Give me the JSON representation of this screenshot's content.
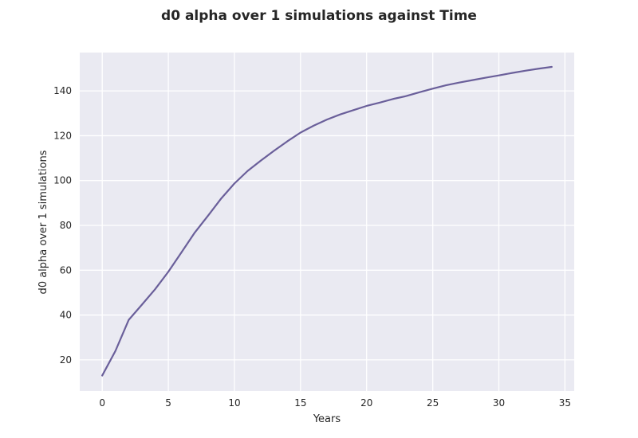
{
  "chart_data": {
    "type": "line",
    "title": "d0 alpha over 1 simulations against Time",
    "xlabel": "Years",
    "ylabel": "d0 alpha over 1 simulations",
    "xlim": [
      -1.7,
      35.7
    ],
    "ylim": [
      6.1,
      157.1
    ],
    "xticks": [
      0,
      5,
      10,
      15,
      20,
      25,
      30,
      35
    ],
    "yticks": [
      20,
      40,
      60,
      80,
      100,
      120,
      140
    ],
    "grid": true,
    "background_color": "#eaeaf2",
    "grid_color": "#ffffff",
    "series": [
      {
        "color": "#6a5f9a",
        "x": [
          0,
          1,
          2,
          3,
          4,
          5,
          6,
          7,
          8,
          9,
          10,
          11,
          12,
          13,
          14,
          15,
          16,
          17,
          18,
          19,
          20,
          21,
          22,
          23,
          24,
          25,
          26,
          27,
          28,
          29,
          30,
          31,
          32,
          33,
          34
        ],
        "values": [
          13.0,
          24.0,
          37.8,
          44.6,
          51.5,
          59.3,
          68.0,
          76.8,
          84.3,
          92.0,
          98.7,
          104.3,
          108.9,
          113.3,
          117.5,
          121.4,
          124.5,
          127.2,
          129.5,
          131.4,
          133.3,
          134.8,
          136.4,
          137.7,
          139.4,
          141.0,
          142.5,
          143.7,
          144.8,
          145.9,
          146.9,
          148.0,
          149.0,
          149.9,
          150.7
        ]
      }
    ]
  }
}
